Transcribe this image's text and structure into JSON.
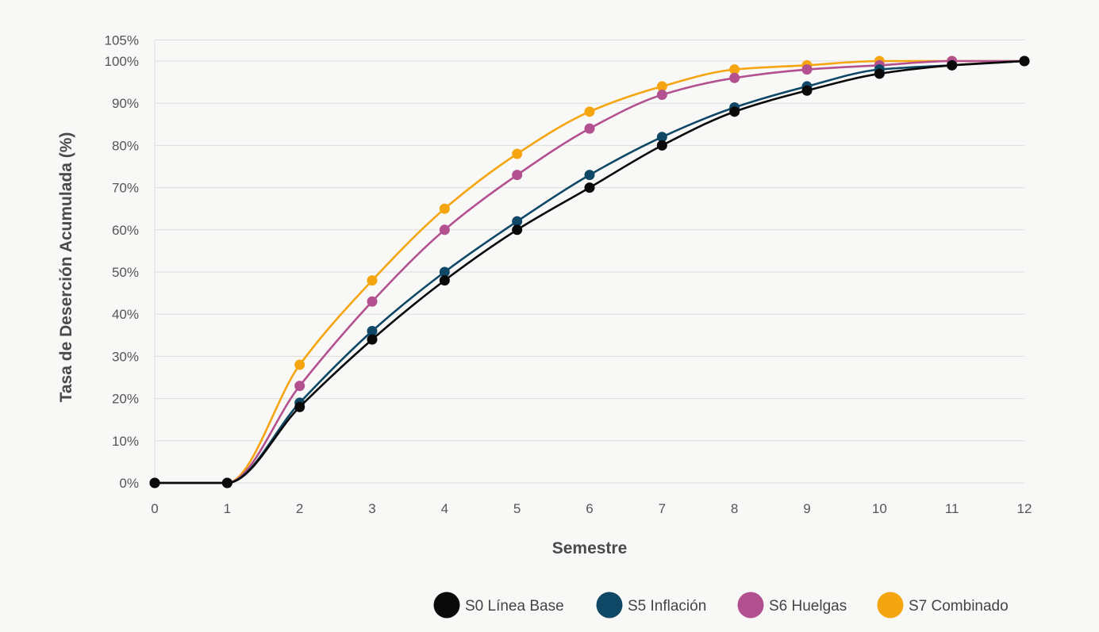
{
  "chart_data": {
    "type": "line",
    "xlabel": "Semestre",
    "ylabel": "Tasa de Deserción Acumulada (%)",
    "x": [
      0,
      1,
      2,
      3,
      4,
      5,
      6,
      7,
      8,
      9,
      10,
      11,
      12
    ],
    "xlim": [
      0,
      12
    ],
    "ylim": [
      0,
      105
    ],
    "y_ticks": [
      0,
      10,
      20,
      30,
      40,
      50,
      60,
      70,
      80,
      90,
      100,
      105
    ],
    "y_tick_labels": [
      "0%",
      "10%",
      "20%",
      "30%",
      "40%",
      "50%",
      "60%",
      "70%",
      "80%",
      "90%",
      "100%",
      "105%"
    ],
    "x_tick_labels": [
      "0",
      "1",
      "2",
      "3",
      "4",
      "5",
      "6",
      "7",
      "8",
      "9",
      "10",
      "11",
      "12"
    ],
    "grid": true,
    "legend_position": "bottom-right",
    "series": [
      {
        "name": "S7 Combinado",
        "color": "#f5a50f",
        "values": [
          0,
          0,
          28,
          48,
          65,
          78,
          88,
          94,
          98,
          99,
          100,
          100,
          100
        ]
      },
      {
        "name": "S6 Huelgas",
        "color": "#b3508f",
        "values": [
          0,
          0,
          23,
          43,
          60,
          73,
          84,
          92,
          96,
          98,
          99,
          100,
          100
        ]
      },
      {
        "name": "S5 Inflación",
        "color": "#0f4766",
        "values": [
          0,
          0,
          19,
          36,
          50,
          62,
          73,
          82,
          89,
          94,
          98,
          99,
          100
        ]
      },
      {
        "name": "S0 Línea Base",
        "color": "#0a0a0a",
        "values": [
          0,
          0,
          18,
          34,
          48,
          60,
          70,
          80,
          88,
          93,
          97,
          99,
          100
        ]
      }
    ],
    "legend_order": [
      "S0 Línea Base",
      "S5 Inflación",
      "S6 Huelgas",
      "S7 Combinado"
    ]
  }
}
